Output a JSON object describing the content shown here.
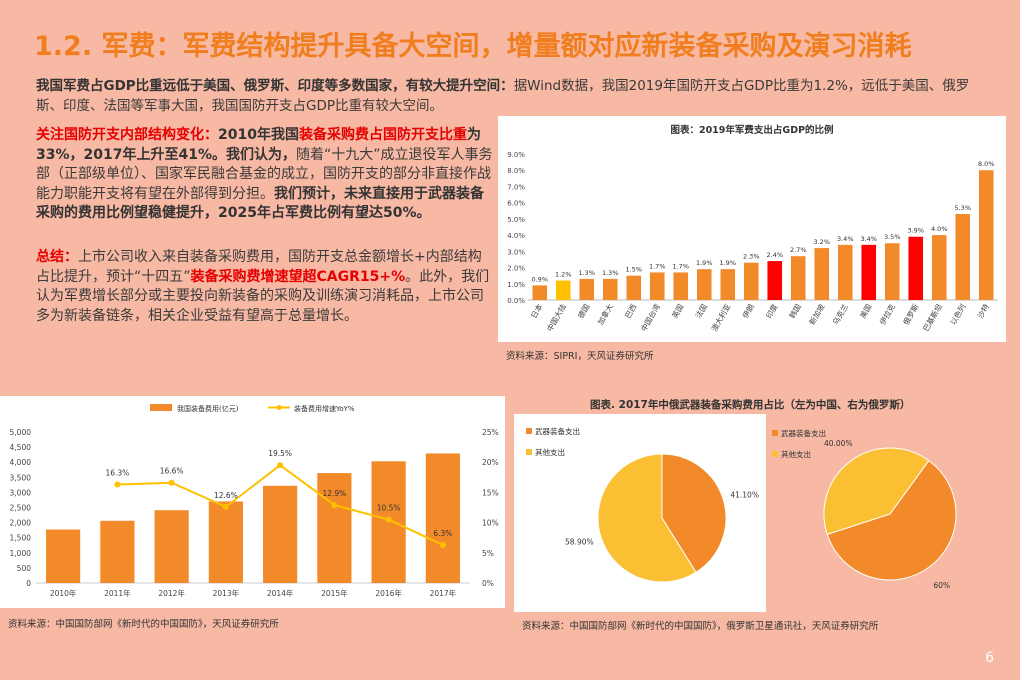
{
  "title": "1.2. 军费：军费结构提升具备大空间，增量额对应新装备采购及演习消耗",
  "p1": {
    "bold": "我国军费占GDP比重远低于美国、俄罗斯、印度等多数国家，有较大提升空间：",
    "text": "据Wind数据，我国2019年国防开支占GDP比重为1.2%，远低于美国、俄罗斯、印度、法国等军事大国，我国国防开支占GDP比重有较大空间。"
  },
  "p2": {
    "red1": "关注国防开支内部结构变化：",
    "b1": "2010年我国",
    "red2": "装备采购费占国防开支比重",
    "b2": "为33%，2017年上升至41%。我们认为，",
    "t1": "随着“十九大”成立退役军人事务部（正部级单位）、国家军民融合基金的成立，国防开支的部分非直接作战能力职能开支将有望在外部得到分担。",
    "b3": "我们预计，未来直接用于武器装备采购的费用比例望稳健提升，2025年占军费比例有望达50%。"
  },
  "p3": {
    "red1": "总结：",
    "t1": "上市公司收入来自装备采购费用，国防开支总金额增长+内部结构占比提升，预计“十四五”",
    "red2": "装备采购费增速望超CAGR15+%",
    "t2": "。此外，我们认为军费增长部分或主要投向新装备的采购及训练演习消耗品，上市公司多为新装备链条，相关企业受益有望高于总量增长。"
  },
  "chart_gdp": {
    "type": "bar",
    "title": "图表：2019年军费支出占GDP的比例",
    "categories": [
      "日本",
      "中国大陆",
      "德国",
      "加拿大",
      "巴西",
      "中国台湾",
      "英国",
      "法国",
      "澳大利亚",
      "伊朗",
      "印度",
      "韩国",
      "新加坡",
      "乌克兰",
      "美国",
      "伊拉克",
      "俄罗斯",
      "巴基斯坦",
      "以色列",
      "沙特"
    ],
    "values": [
      0.9,
      1.2,
      1.3,
      1.3,
      1.5,
      1.7,
      1.7,
      1.9,
      1.9,
      2.3,
      2.4,
      2.7,
      3.2,
      3.4,
      3.4,
      3.5,
      3.9,
      4.0,
      5.3,
      8.0
    ],
    "value_labels": [
      "0.9%",
      "1.2%",
      "1.3%",
      "1.3%",
      "1.5%",
      "1.7%",
      "1.7%",
      "1.9%",
      "1.9%",
      "2.3%",
      "2.4%",
      "2.7%",
      "3.2%",
      "3.4%",
      "3.4%",
      "3.5%",
      "3.9%",
      "4.0%",
      "5.3%",
      "8.0%"
    ],
    "highlight": [
      "normal",
      "yellow",
      "normal",
      "normal",
      "normal",
      "normal",
      "normal",
      "normal",
      "normal",
      "normal",
      "red",
      "normal",
      "normal",
      "normal",
      "red",
      "normal",
      "red",
      "normal",
      "normal",
      "normal"
    ],
    "yticks": [
      "0.0%",
      "1.0%",
      "2.0%",
      "3.0%",
      "4.0%",
      "5.0%",
      "6.0%",
      "7.0%",
      "8.0%",
      "9.0%"
    ],
    "ylim": [
      0,
      9
    ],
    "colors": {
      "normal": "#f28a2a",
      "red": "#ff0000",
      "yellow": "#ffc000"
    },
    "source": "资料来源：SIPRI，天风证券研究所"
  },
  "chart_equip": {
    "type": "bar+line",
    "legend_bar": "我国装备费用(亿元)",
    "legend_line": "装备费用增速YoY%",
    "categories": [
      "2010年",
      "2011年",
      "2012年",
      "2013年",
      "2014年",
      "2015年",
      "2016年",
      "2017年"
    ],
    "bar_values": [
      1770,
      2060,
      2410,
      2700,
      3220,
      3640,
      4030,
      4290
    ],
    "line_values": [
      null,
      16.3,
      16.6,
      12.6,
      19.5,
      12.9,
      10.5,
      6.3
    ],
    "line_labels": [
      "",
      "16.3%",
      "16.6%",
      "12.6%",
      "19.5%",
      "12.9%",
      "10.5%",
      "6.3%"
    ],
    "yleft_ticks": [
      "0",
      "500",
      "1,000",
      "1,500",
      "2,000",
      "2,500",
      "3,000",
      "3,500",
      "4,000",
      "4,500",
      "5,000"
    ],
    "yleft_lim": [
      0,
      5000
    ],
    "yright_ticks": [
      "0%",
      "5%",
      "10%",
      "15%",
      "20%",
      "25%"
    ],
    "yright_lim": [
      0,
      25
    ],
    "colors": {
      "bar": "#f28a2a",
      "line": "#ffc000"
    },
    "source": "资料来源：中国国防部网《新时代的中国国防》，天风证券研究所"
  },
  "chart_pie": {
    "type": "pie",
    "title": "图表. 2017年中俄武器装备采购费用占比（左为中国、右为俄罗斯）",
    "legend": [
      "武器装备支出",
      "其他支出"
    ],
    "china": {
      "values": [
        41.1,
        58.9
      ],
      "labels": [
        "41.10%",
        "58.90%"
      ]
    },
    "russia": {
      "values": [
        60,
        40
      ],
      "labels": [
        "60%",
        "40.00%"
      ]
    },
    "colors": {
      "equip": "#f28a2a",
      "other": "#fbbf34"
    },
    "source": "资料来源：中国国防部网《新时代的中国国防》，俄罗斯卫星通讯社，天风证券研究所"
  },
  "page_number": "6"
}
